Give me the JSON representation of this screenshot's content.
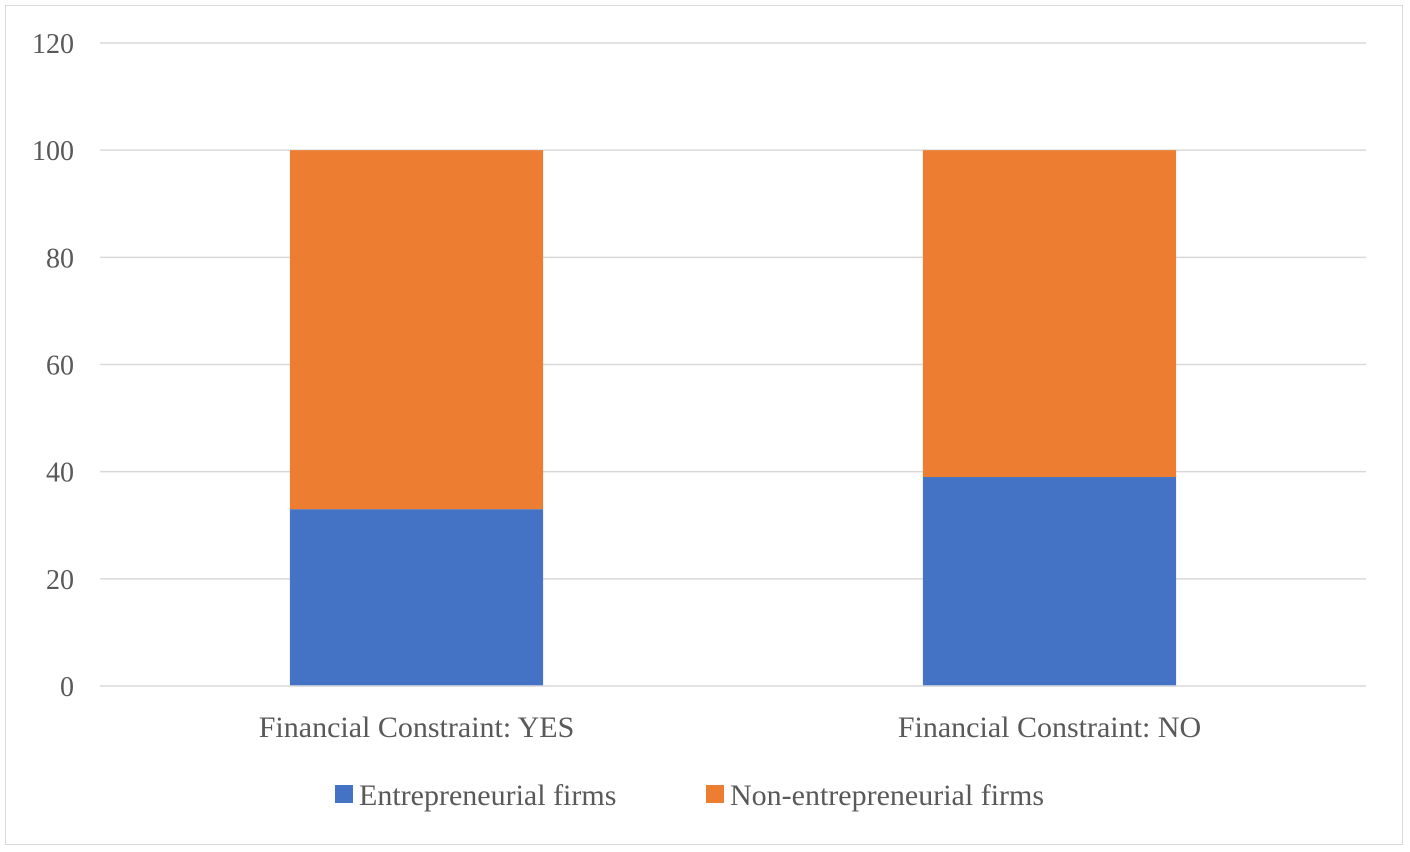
{
  "chart_data": {
    "type": "bar",
    "stacked": true,
    "title": "",
    "xlabel": "",
    "ylabel": "",
    "categories": [
      "Financial Constraint: YES",
      "Financial Constraint: NO"
    ],
    "series": [
      {
        "name": "Entrepreneurial firms",
        "values": [
          33,
          39
        ],
        "color": "#4472c4"
      },
      {
        "name": "Non-entrepreneurial firms",
        "values": [
          67,
          61
        ],
        "color": "#ed7d31"
      }
    ],
    "ylim": [
      0,
      120
    ],
    "yticks": [
      0,
      20,
      40,
      60,
      80,
      100,
      120
    ],
    "grid": true,
    "legend": "bottom"
  }
}
